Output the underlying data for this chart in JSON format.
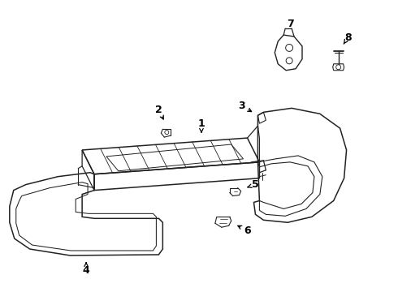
{
  "background_color": "#ffffff",
  "line_color": "#222222",
  "figsize": [
    4.9,
    3.6
  ],
  "dpi": 100
}
